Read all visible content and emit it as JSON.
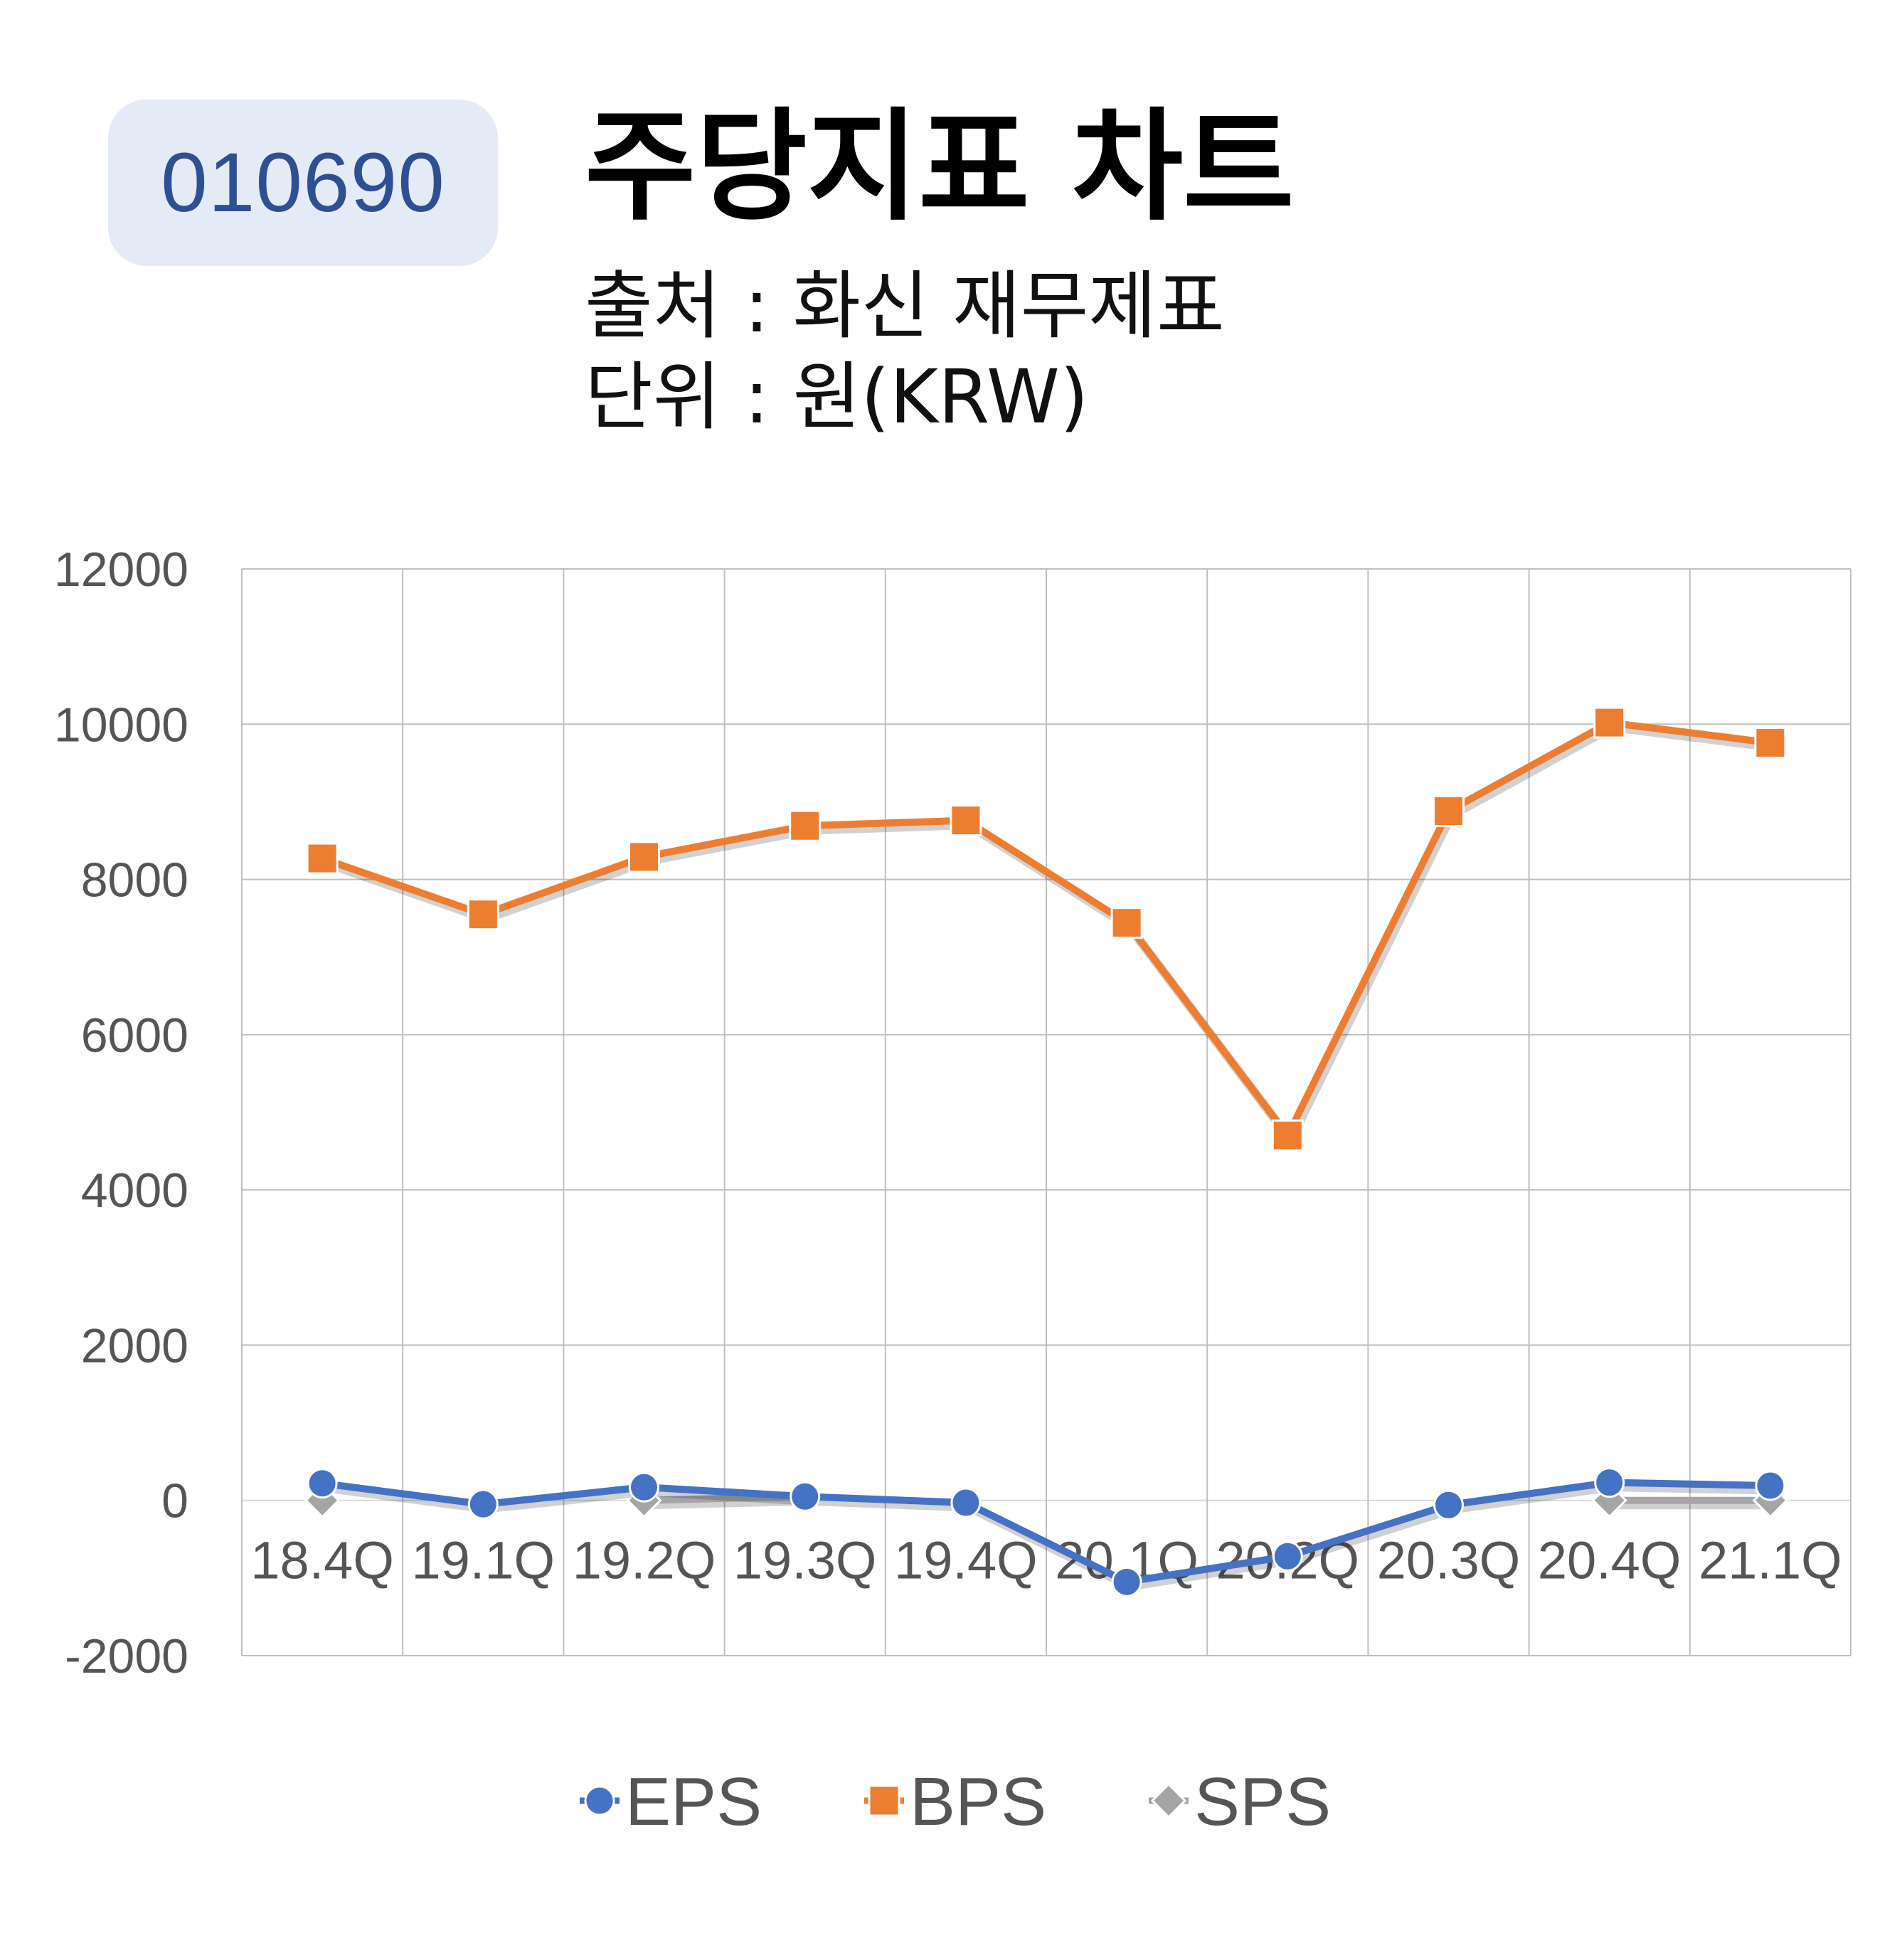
{
  "header": {
    "ticker": "010690",
    "title": "주당지표 차트",
    "source": "출처 : 화신 재무제표",
    "unit": "단위 : 원(KRW)"
  },
  "chart_data": {
    "type": "line",
    "categories": [
      "18.4Q",
      "19.1Q",
      "19.2Q",
      "19.3Q",
      "19.4Q",
      "20.1Q",
      "20.2Q",
      "20.3Q",
      "20.4Q",
      "21.1Q"
    ],
    "ylim": [
      -2000,
      12000
    ],
    "yticks": [
      -2000,
      0,
      2000,
      4000,
      6000,
      8000,
      10000,
      12000
    ],
    "grid": true,
    "legend_position": "bottom",
    "series": [
      {
        "name": "EPS",
        "color": "#4472c4",
        "marker": "circle",
        "values": [
          220,
          -50,
          170,
          50,
          -30,
          -1050,
          -720,
          -60,
          230,
          190
        ]
      },
      {
        "name": "BPS",
        "color": "#ed7d31",
        "marker": "square",
        "values": [
          8270,
          7550,
          8290,
          8690,
          8760,
          7440,
          4700,
          8880,
          10020,
          9760
        ]
      },
      {
        "name": "SPS",
        "color": "#a5a5a5",
        "marker": "diamond",
        "values": [
          0,
          null,
          0,
          50,
          null,
          null,
          null,
          null,
          0,
          0
        ]
      }
    ]
  }
}
